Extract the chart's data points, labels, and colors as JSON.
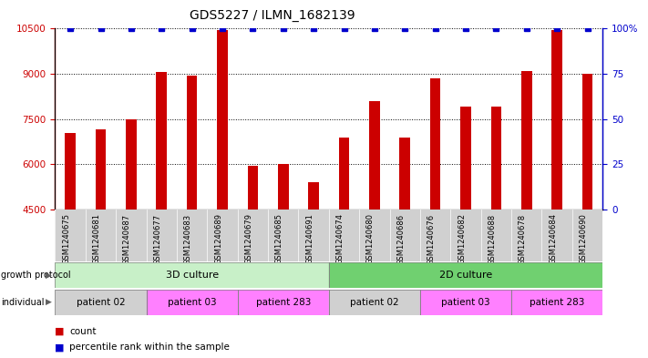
{
  "title": "GDS5227 / ILMN_1682139",
  "samples": [
    "GSM1240675",
    "GSM1240681",
    "GSM1240687",
    "GSM1240677",
    "GSM1240683",
    "GSM1240689",
    "GSM1240679",
    "GSM1240685",
    "GSM1240691",
    "GSM1240674",
    "GSM1240680",
    "GSM1240686",
    "GSM1240676",
    "GSM1240682",
    "GSM1240688",
    "GSM1240678",
    "GSM1240684",
    "GSM1240690"
  ],
  "counts": [
    7050,
    7150,
    7500,
    9050,
    8950,
    10450,
    5950,
    6000,
    5400,
    6900,
    8100,
    6900,
    8850,
    7900,
    7900,
    9100,
    10450,
    9000
  ],
  "percentile_ranks": [
    100,
    100,
    100,
    100,
    100,
    100,
    100,
    100,
    100,
    100,
    100,
    100,
    100,
    100,
    100,
    100,
    100,
    100
  ],
  "ylim_left": [
    4500,
    10500
  ],
  "ylim_right": [
    0,
    100
  ],
  "yticks_left": [
    4500,
    6000,
    7500,
    9000,
    10500
  ],
  "yticks_right": [
    0,
    25,
    50,
    75,
    100
  ],
  "bar_color": "#cc0000",
  "dot_color": "#0000cc",
  "grid_color": "#000000",
  "background_color": "#ffffff",
  "tick_color_left": "#cc0000",
  "tick_color_right": "#0000cc",
  "gp_3d_color": "#c8f0c8",
  "gp_2d_color": "#70d070",
  "ind_gray_color": "#d0d0d0",
  "ind_pink_color": "#ff80ff",
  "sample_bg_color": "#d0d0d0",
  "bar_width": 0.35
}
